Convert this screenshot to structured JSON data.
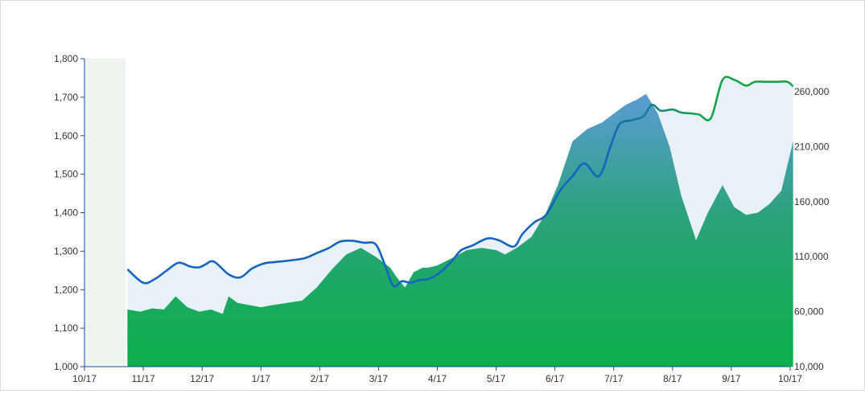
{
  "chart_data": {
    "type": "line",
    "title": "",
    "xlabel": "",
    "ylabel": "",
    "x_ticks": [
      "10/17",
      "11/17",
      "12/17",
      "1/17",
      "2/17",
      "3/17",
      "4/17",
      "5/17",
      "6/17",
      "7/17",
      "8/17",
      "9/17",
      "10/17"
    ],
    "ylim": [
      1000,
      1800
    ],
    "y_ticks": [
      "1,000",
      "1,100",
      "1,200",
      "1,300",
      "1,400",
      "1,500",
      "1,600",
      "1,700",
      "1,800"
    ],
    "y2lim": [
      10000,
      290000
    ],
    "y2_ticks": [
      "10,000",
      "60,000",
      "110,000",
      "160,000",
      "210,000",
      "260,000"
    ],
    "highlight_band": {
      "from": 0,
      "to": 0.7
    },
    "colors": {
      "line_low": "#1565c0",
      "line_high": "#16a34a",
      "area_top": "#5b9bd5",
      "area_bottom": "#0bb04a",
      "envelope": "#e8f1f7",
      "band": "#edf5ee",
      "axis": "#1f4e9a"
    },
    "series": [
      {
        "role": "price",
        "axis": "left",
        "x": [
          0.73,
          1.0,
          1.2,
          1.4,
          1.6,
          1.8,
          1.95,
          2.05,
          2.2,
          2.45,
          2.65,
          2.85,
          3.05,
          3.25,
          3.5,
          3.75,
          3.95,
          4.15,
          4.35,
          4.55,
          4.75,
          4.95,
          5.1,
          5.25,
          5.4,
          5.55,
          5.7,
          5.85,
          6.05,
          6.25,
          6.4,
          6.6,
          6.85,
          7.05,
          7.3,
          7.45,
          7.65,
          7.85,
          8.1,
          8.3,
          8.5,
          8.75,
          8.95,
          9.1,
          9.3,
          9.5,
          9.65,
          9.8,
          10.0,
          10.15,
          10.3,
          10.45,
          10.65,
          10.85,
          11.05,
          11.25,
          11.4,
          11.6,
          11.75,
          11.95,
          12.05
        ],
        "y": [
          1253,
          1218,
          1228,
          1250,
          1270,
          1260,
          1258,
          1265,
          1273,
          1240,
          1232,
          1255,
          1268,
          1272,
          1276,
          1282,
          1295,
          1308,
          1325,
          1327,
          1322,
          1318,
          1268,
          1210,
          1222,
          1218,
          1225,
          1228,
          1245,
          1275,
          1302,
          1315,
          1333,
          1328,
          1312,
          1345,
          1375,
          1395,
          1460,
          1495,
          1528,
          1495,
          1575,
          1630,
          1640,
          1650,
          1680,
          1665,
          1668,
          1660,
          1658,
          1655,
          1645,
          1745,
          1745,
          1730,
          1740,
          1740,
          1740,
          1740,
          1728
        ]
      },
      {
        "role": "volume",
        "axis": "right",
        "x": [
          0.73,
          0.95,
          1.15,
          1.35,
          1.55,
          1.75,
          1.95,
          2.15,
          2.35,
          2.45,
          2.6,
          2.8,
          3.0,
          3.2,
          3.45,
          3.7,
          3.95,
          4.2,
          4.45,
          4.7,
          4.95,
          5.2,
          5.3,
          5.45,
          5.6,
          5.75,
          5.85,
          6.0,
          6.15,
          6.3,
          6.5,
          6.75,
          7.0,
          7.15,
          7.35,
          7.6,
          7.85,
          8.05,
          8.3,
          8.55,
          8.8,
          9.0,
          9.2,
          9.4,
          9.55,
          9.75,
          9.95,
          10.15,
          10.4,
          10.6,
          10.85,
          11.05,
          11.25,
          11.45,
          11.65,
          11.85,
          12.05
        ],
        "y": [
          62000,
          60000,
          63000,
          62000,
          74000,
          64000,
          60000,
          62000,
          58000,
          74000,
          68000,
          66000,
          64000,
          66000,
          68000,
          70000,
          82000,
          98000,
          112000,
          118000,
          110000,
          100000,
          92000,
          82000,
          96000,
          100000,
          100000,
          102000,
          106000,
          110000,
          116000,
          118000,
          116000,
          112000,
          118000,
          128000,
          150000,
          175000,
          215000,
          226000,
          232000,
          240000,
          248000,
          253000,
          258000,
          240000,
          210000,
          165000,
          125000,
          150000,
          175000,
          155000,
          148000,
          150000,
          158000,
          170000,
          215000
        ]
      }
    ]
  }
}
